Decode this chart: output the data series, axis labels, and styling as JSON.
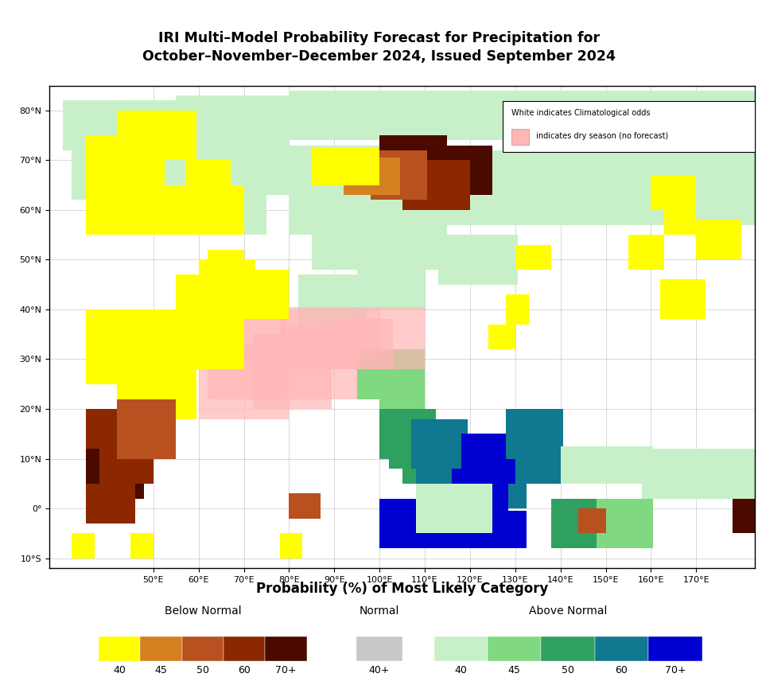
{
  "title_line1": "IRI Multi–Model Probability Forecast for Precipitation for",
  "title_line2": "October–November–December 2024, Issued September 2024",
  "xlabel": "Probability (%) of Most Likely Category",
  "ocean_color": "#c8e4f0",
  "land_color": "#ffffff",
  "legend_text1": "White indicates Climatological odds",
  "legend_text2": " indicates dry season (no forecast)",
  "legend_dry_color": "#ffb6b6",
  "below_normal_colors": [
    "#ffff00",
    "#d48020",
    "#b85020",
    "#8b2800",
    "#4a0a00"
  ],
  "below_normal_labels": [
    "40",
    "45",
    "50",
    "60",
    "70+"
  ],
  "normal_colors": [
    "#c8c8c8"
  ],
  "normal_labels": [
    "40+"
  ],
  "above_normal_colors": [
    "#c8f0c8",
    "#80d880",
    "#30a060",
    "#107890",
    "#0000d0"
  ],
  "above_normal_labels": [
    "40",
    "45",
    "50",
    "60",
    "70+"
  ],
  "map_extent": [
    27,
    183,
    -12,
    85
  ],
  "lon_ticks": [
    50,
    60,
    70,
    80,
    90,
    100,
    110,
    120,
    130,
    140,
    150,
    160,
    170
  ],
  "lat_ticks": [
    -10,
    0,
    10,
    20,
    30,
    40,
    50,
    60,
    70,
    80
  ],
  "figsize": [
    9.54,
    8.61
  ],
  "dpi": 100
}
